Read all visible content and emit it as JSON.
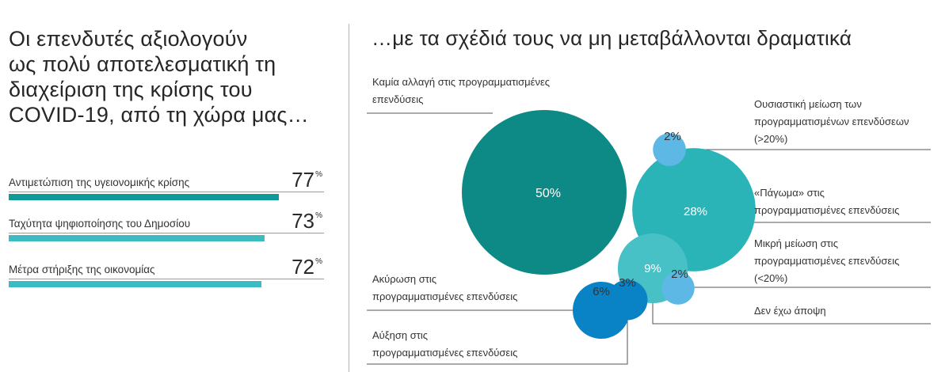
{
  "left_panel": {
    "title": "Οι επενδυτές αξιολογούν\nως πολύ αποτελεσματική τη\nδιαχείριση της κρίσης του\nCOVID-19, από τη χώρα μας…",
    "unit_symbol": "%",
    "bars": [
      {
        "label": "Αντιμετώπιση της υγειονομικής κρίσης",
        "value": 77,
        "value_text": "77",
        "color": "#0f9a96"
      },
      {
        "label": "Ταχύτητα ψηφιοποίησης του Δημοσίου",
        "value": 73,
        "value_text": "73",
        "color": "#3bbcc2"
      },
      {
        "label": "Μέτρα στήριξης της οικονομίας",
        "value": 72,
        "value_text": "72",
        "color": "#3bbcc2"
      }
    ]
  },
  "right_panel": {
    "title": "…με τα σχέδιά τους να μη μεταβάλλονται δραματικά"
  },
  "chart_data": {
    "type": "bubble",
    "title": "…με τα σχέδιά τους να μη μεταβάλλονται δραματικά",
    "unit": "%",
    "series": [
      {
        "name": "Καμία αλλαγή στις προγραμματισμένες επενδύσεις",
        "value": 50,
        "value_text": "50%",
        "color": "#0e8a86"
      },
      {
        "name": "«Πάγωμα» στις προγραμματισμένες επενδύσεις",
        "value": 28,
        "value_text": "28%",
        "color": "#2bb4b8"
      },
      {
        "name": "Μικρή μείωση στις προγραμματισμένες επενδύσεις (<20%)",
        "value": 9,
        "value_text": "9%",
        "color": "#47c0c6"
      },
      {
        "name": "Ακύρωση στις προγραμματισμένες επενδύσεις",
        "value": 6,
        "value_text": "6%",
        "color": "#0a82c6"
      },
      {
        "name": "Αύξηση στις προγραμματισμένες επενδύσεις",
        "value": 3,
        "value_text": "3%",
        "color": "#0a82c6"
      },
      {
        "name": "Ουσιαστική μείωση των προγραμματισμένων επενδύσεων (>20%)",
        "value": 2,
        "value_text": "2%",
        "color": "#5db8e6"
      },
      {
        "name": "Δεν έχω άποψη",
        "value": 2,
        "value_text": "2%",
        "color": "#5db8e6"
      }
    ],
    "labels": {
      "no_change": "Καμία αλλαγή στις προγραμματισμένες\nεπενδύσεις",
      "substantial_cut": "Ουσιαστική μείωση των\nπρογραμματισμένων επενδύσεων\n(>20%)",
      "freeze": "«Πάγωμα» στις\nπρογραμματισμένες επενδύσεις",
      "small_cut": "Μικρή μείωση στις\nπρογραμματισμένες επενδύσεις\n(<20%)",
      "no_opinion": "Δεν έχω άποψη",
      "cancel": "Ακύρωση στις\nπρογραμματισμένες επενδύσεις",
      "increase": "Αύξηση στις\nπρογραμματισμένες επενδύσεις"
    }
  }
}
